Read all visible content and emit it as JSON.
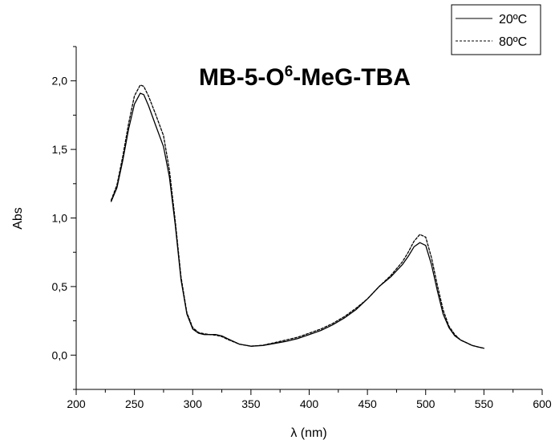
{
  "chart_data": {
    "type": "line",
    "title_main": "MB-5-O",
    "title_sup": "6",
    "title_rest": "-MeG-TBA",
    "xlabel": "λ (nm)",
    "ylabel": "Abs",
    "xlim": [
      200,
      600
    ],
    "ylim": [
      -0.25,
      2.25
    ],
    "x_ticks": [
      200,
      250,
      300,
      350,
      400,
      450,
      500,
      550,
      600
    ],
    "x_tick_labels": [
      "200",
      "250",
      "300",
      "350",
      "400",
      "450",
      "500",
      "550",
      "600"
    ],
    "y_ticks": [
      0.0,
      0.5,
      1.0,
      1.5,
      2.0
    ],
    "y_tick_labels": [
      "0,0",
      "0,5",
      "1,0",
      "1,5",
      "2,0"
    ],
    "grid": false,
    "legend_position": "top-right",
    "series": [
      {
        "name": "20ºC",
        "style": "solid",
        "color": "#000000",
        "x": [
          230,
          235,
          240,
          245,
          250,
          255,
          258,
          262,
          268,
          275,
          280,
          285,
          290,
          295,
          300,
          305,
          310,
          315,
          320,
          325,
          330,
          340,
          350,
          360,
          370,
          380,
          390,
          400,
          410,
          420,
          430,
          440,
          450,
          460,
          470,
          480,
          485,
          490,
          495,
          500,
          505,
          510,
          515,
          520,
          525,
          530,
          535,
          540,
          545,
          550
        ],
        "y": [
          1.12,
          1.22,
          1.42,
          1.65,
          1.83,
          1.91,
          1.9,
          1.82,
          1.68,
          1.52,
          1.3,
          0.95,
          0.55,
          0.3,
          0.19,
          0.16,
          0.15,
          0.15,
          0.15,
          0.14,
          0.12,
          0.08,
          0.065,
          0.07,
          0.085,
          0.1,
          0.12,
          0.15,
          0.18,
          0.22,
          0.27,
          0.33,
          0.41,
          0.5,
          0.57,
          0.66,
          0.72,
          0.79,
          0.82,
          0.8,
          0.66,
          0.47,
          0.3,
          0.2,
          0.14,
          0.11,
          0.09,
          0.07,
          0.06,
          0.05
        ]
      },
      {
        "name": "80ºC",
        "style": "dashed",
        "color": "#000000",
        "x": [
          230,
          235,
          240,
          245,
          250,
          255,
          258,
          262,
          268,
          275,
          280,
          285,
          290,
          295,
          300,
          305,
          310,
          315,
          320,
          325,
          330,
          340,
          350,
          360,
          370,
          380,
          390,
          400,
          410,
          420,
          430,
          440,
          450,
          460,
          470,
          480,
          485,
          490,
          495,
          500,
          505,
          510,
          515,
          520,
          525,
          530,
          535,
          540,
          545,
          550
        ],
        "y": [
          1.13,
          1.24,
          1.45,
          1.69,
          1.89,
          1.97,
          1.96,
          1.89,
          1.76,
          1.6,
          1.35,
          0.98,
          0.57,
          0.31,
          0.2,
          0.165,
          0.155,
          0.15,
          0.145,
          0.135,
          0.115,
          0.08,
          0.065,
          0.072,
          0.09,
          0.11,
          0.13,
          0.16,
          0.19,
          0.23,
          0.28,
          0.34,
          0.41,
          0.5,
          0.58,
          0.68,
          0.75,
          0.83,
          0.88,
          0.86,
          0.71,
          0.51,
          0.33,
          0.21,
          0.15,
          0.11,
          0.09,
          0.07,
          0.06,
          0.05
        ]
      }
    ]
  }
}
